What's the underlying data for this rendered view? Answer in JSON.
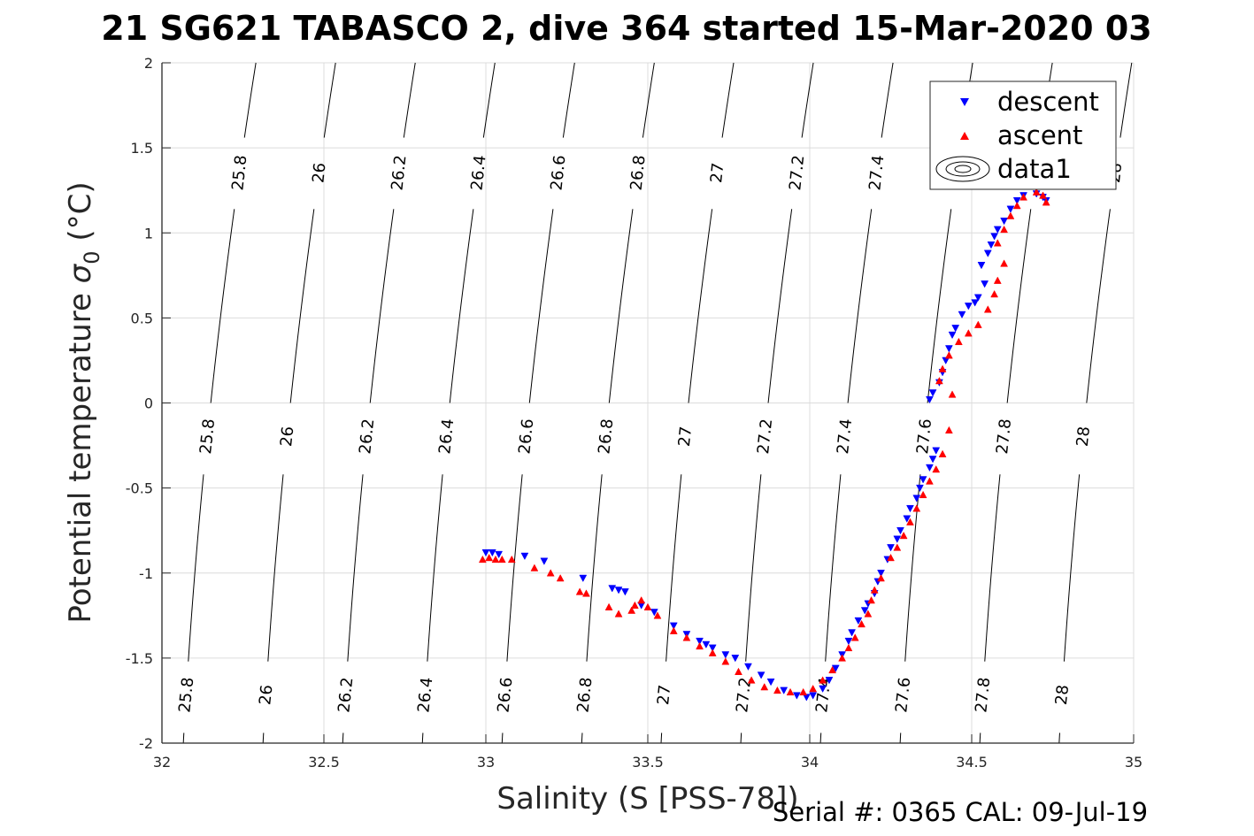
{
  "chart_data": {
    "type": "scatter",
    "title": "21 SG621 TABASCO 2, dive 364 started 15-Mar-2020 03",
    "xlabel": "Salinity (S [PSS-78])",
    "ylabel_prefix": "Potential temperature ",
    "ylabel_sigma": "σ",
    "ylabel_sub": "0",
    "ylabel_suffix": " (°C)",
    "xlim": [
      32,
      35
    ],
    "ylim": [
      -2,
      2
    ],
    "grid": true,
    "x_ticks": [
      32,
      32.5,
      33,
      33.5,
      34,
      34.5,
      35
    ],
    "x_tick_labels": [
      "32",
      "32.5",
      "33",
      "33.5",
      "34",
      "34.5",
      "35"
    ],
    "y_ticks": [
      -2,
      -1.5,
      -1,
      -0.5,
      0,
      0.5,
      1,
      1.5,
      2
    ],
    "y_tick_labels": [
      "-2",
      "-1.5",
      "-1",
      "-0.5",
      "0",
      "0.5",
      "1",
      "1.5",
      "2"
    ],
    "legend": {
      "placement": "top-right",
      "entries": [
        {
          "label": "descent",
          "marker": "triangle-down",
          "color": "#0000ff"
        },
        {
          "label": "ascent",
          "marker": "triangle-up",
          "color": "#ff0000"
        },
        {
          "label": "data1",
          "marker": "contour",
          "color": "#000000"
        }
      ]
    },
    "density_contours": {
      "levels": [
        25.8,
        26,
        26.2,
        26.4,
        26.6,
        26.8,
        27,
        27.2,
        27.4,
        27.6,
        27.8,
        28
      ],
      "labels": [
        "25.8",
        "26",
        "26.2",
        "26.4",
        "26.6",
        "26.8",
        "27",
        "27.2",
        "27.4",
        "27.6",
        "27.8",
        "28"
      ],
      "salinity_at_minus2": [
        32.066,
        32.312,
        32.558,
        32.804,
        33.05,
        33.296,
        33.541,
        33.787,
        34.033,
        34.279,
        34.525,
        34.77
      ]
    },
    "series": [
      {
        "name": "descent",
        "color": "#0000ff",
        "marker": "triangle-down",
        "points": [
          [
            33.0,
            -0.88
          ],
          [
            33.02,
            -0.88
          ],
          [
            33.04,
            -0.89
          ],
          [
            33.12,
            -0.9
          ],
          [
            33.18,
            -0.93
          ],
          [
            33.3,
            -1.03
          ],
          [
            33.39,
            -1.09
          ],
          [
            33.41,
            -1.1
          ],
          [
            33.43,
            -1.11
          ],
          [
            33.48,
            -1.19
          ],
          [
            33.52,
            -1.23
          ],
          [
            33.58,
            -1.31
          ],
          [
            33.62,
            -1.36
          ],
          [
            33.66,
            -1.4
          ],
          [
            33.68,
            -1.42
          ],
          [
            33.7,
            -1.44
          ],
          [
            33.74,
            -1.48
          ],
          [
            33.77,
            -1.5
          ],
          [
            33.81,
            -1.55
          ],
          [
            33.85,
            -1.6
          ],
          [
            33.88,
            -1.64
          ],
          [
            33.92,
            -1.69
          ],
          [
            33.96,
            -1.72
          ],
          [
            33.99,
            -1.73
          ],
          [
            34.01,
            -1.72
          ],
          [
            34.04,
            -1.68
          ],
          [
            34.06,
            -1.63
          ],
          [
            34.08,
            -1.56
          ],
          [
            34.1,
            -1.48
          ],
          [
            34.12,
            -1.4
          ],
          [
            34.13,
            -1.35
          ],
          [
            34.15,
            -1.28
          ],
          [
            34.17,
            -1.22
          ],
          [
            34.18,
            -1.18
          ],
          [
            34.2,
            -1.12
          ],
          [
            34.21,
            -1.05
          ],
          [
            34.22,
            -1.0
          ],
          [
            34.24,
            -0.92
          ],
          [
            34.25,
            -0.85
          ],
          [
            34.27,
            -0.8
          ],
          [
            34.28,
            -0.75
          ],
          [
            34.3,
            -0.68
          ],
          [
            34.31,
            -0.62
          ],
          [
            34.33,
            -0.56
          ],
          [
            34.34,
            -0.5
          ],
          [
            34.35,
            -0.45
          ],
          [
            34.37,
            -0.38
          ],
          [
            34.38,
            -0.33
          ],
          [
            34.39,
            -0.28
          ],
          [
            34.37,
            0.02
          ],
          [
            34.38,
            0.06
          ],
          [
            34.4,
            0.12
          ],
          [
            34.41,
            0.18
          ],
          [
            34.42,
            0.25
          ],
          [
            34.43,
            0.32
          ],
          [
            34.44,
            0.4
          ],
          [
            34.45,
            0.44
          ],
          [
            34.47,
            0.52
          ],
          [
            34.49,
            0.57
          ],
          [
            34.51,
            0.59
          ],
          [
            34.52,
            0.62
          ],
          [
            34.54,
            0.7
          ],
          [
            34.53,
            0.81
          ],
          [
            34.55,
            0.88
          ],
          [
            34.56,
            0.93
          ],
          [
            34.57,
            0.98
          ],
          [
            34.58,
            1.02
          ],
          [
            34.6,
            1.07
          ],
          [
            34.62,
            1.14
          ],
          [
            34.64,
            1.19
          ],
          [
            34.66,
            1.22
          ],
          [
            34.7,
            1.23
          ],
          [
            34.72,
            1.21
          ],
          [
            34.73,
            1.19
          ]
        ]
      },
      {
        "name": "ascent",
        "color": "#ff0000",
        "marker": "triangle-up",
        "points": [
          [
            32.99,
            -0.92
          ],
          [
            33.01,
            -0.91
          ],
          [
            33.03,
            -0.92
          ],
          [
            33.05,
            -0.92
          ],
          [
            33.08,
            -0.92
          ],
          [
            33.15,
            -0.97
          ],
          [
            33.2,
            -1.0
          ],
          [
            33.23,
            -1.03
          ],
          [
            33.29,
            -1.11
          ],
          [
            33.31,
            -1.12
          ],
          [
            33.38,
            -1.2
          ],
          [
            33.41,
            -1.24
          ],
          [
            33.45,
            -1.22
          ],
          [
            33.46,
            -1.19
          ],
          [
            33.48,
            -1.16
          ],
          [
            33.5,
            -1.2
          ],
          [
            33.53,
            -1.25
          ],
          [
            33.58,
            -1.34
          ],
          [
            33.62,
            -1.38
          ],
          [
            33.66,
            -1.43
          ],
          [
            33.7,
            -1.47
          ],
          [
            33.74,
            -1.52
          ],
          [
            33.78,
            -1.58
          ],
          [
            33.82,
            -1.63
          ],
          [
            33.86,
            -1.67
          ],
          [
            33.9,
            -1.69
          ],
          [
            33.94,
            -1.7
          ],
          [
            33.98,
            -1.7
          ],
          [
            34.01,
            -1.68
          ],
          [
            34.04,
            -1.63
          ],
          [
            34.07,
            -1.57
          ],
          [
            34.1,
            -1.5
          ],
          [
            34.12,
            -1.44
          ],
          [
            34.14,
            -1.38
          ],
          [
            34.16,
            -1.3
          ],
          [
            34.18,
            -1.24
          ],
          [
            34.19,
            -1.16
          ],
          [
            34.2,
            -1.1
          ],
          [
            34.22,
            -1.03
          ],
          [
            34.25,
            -0.91
          ],
          [
            34.27,
            -0.85
          ],
          [
            34.29,
            -0.78
          ],
          [
            34.31,
            -0.7
          ],
          [
            34.33,
            -0.62
          ],
          [
            34.35,
            -0.54
          ],
          [
            34.37,
            -0.46
          ],
          [
            34.39,
            -0.39
          ],
          [
            34.41,
            -0.3
          ],
          [
            34.43,
            -0.16
          ],
          [
            34.44,
            0.05
          ],
          [
            34.4,
            0.13
          ],
          [
            34.41,
            0.2
          ],
          [
            34.43,
            0.28
          ],
          [
            34.46,
            0.36
          ],
          [
            34.49,
            0.41
          ],
          [
            34.52,
            0.46
          ],
          [
            34.55,
            0.55
          ],
          [
            34.57,
            0.64
          ],
          [
            34.58,
            0.72
          ],
          [
            34.6,
            0.82
          ],
          [
            34.58,
            0.94
          ],
          [
            34.6,
            1.02
          ],
          [
            34.62,
            1.1
          ],
          [
            34.64,
            1.16
          ],
          [
            34.66,
            1.21
          ],
          [
            34.7,
            1.24
          ],
          [
            34.72,
            1.22
          ],
          [
            34.73,
            1.18
          ]
        ]
      }
    ]
  },
  "footer": {
    "serial": "Serial #: 0365  CAL: 09-Jul-19"
  }
}
